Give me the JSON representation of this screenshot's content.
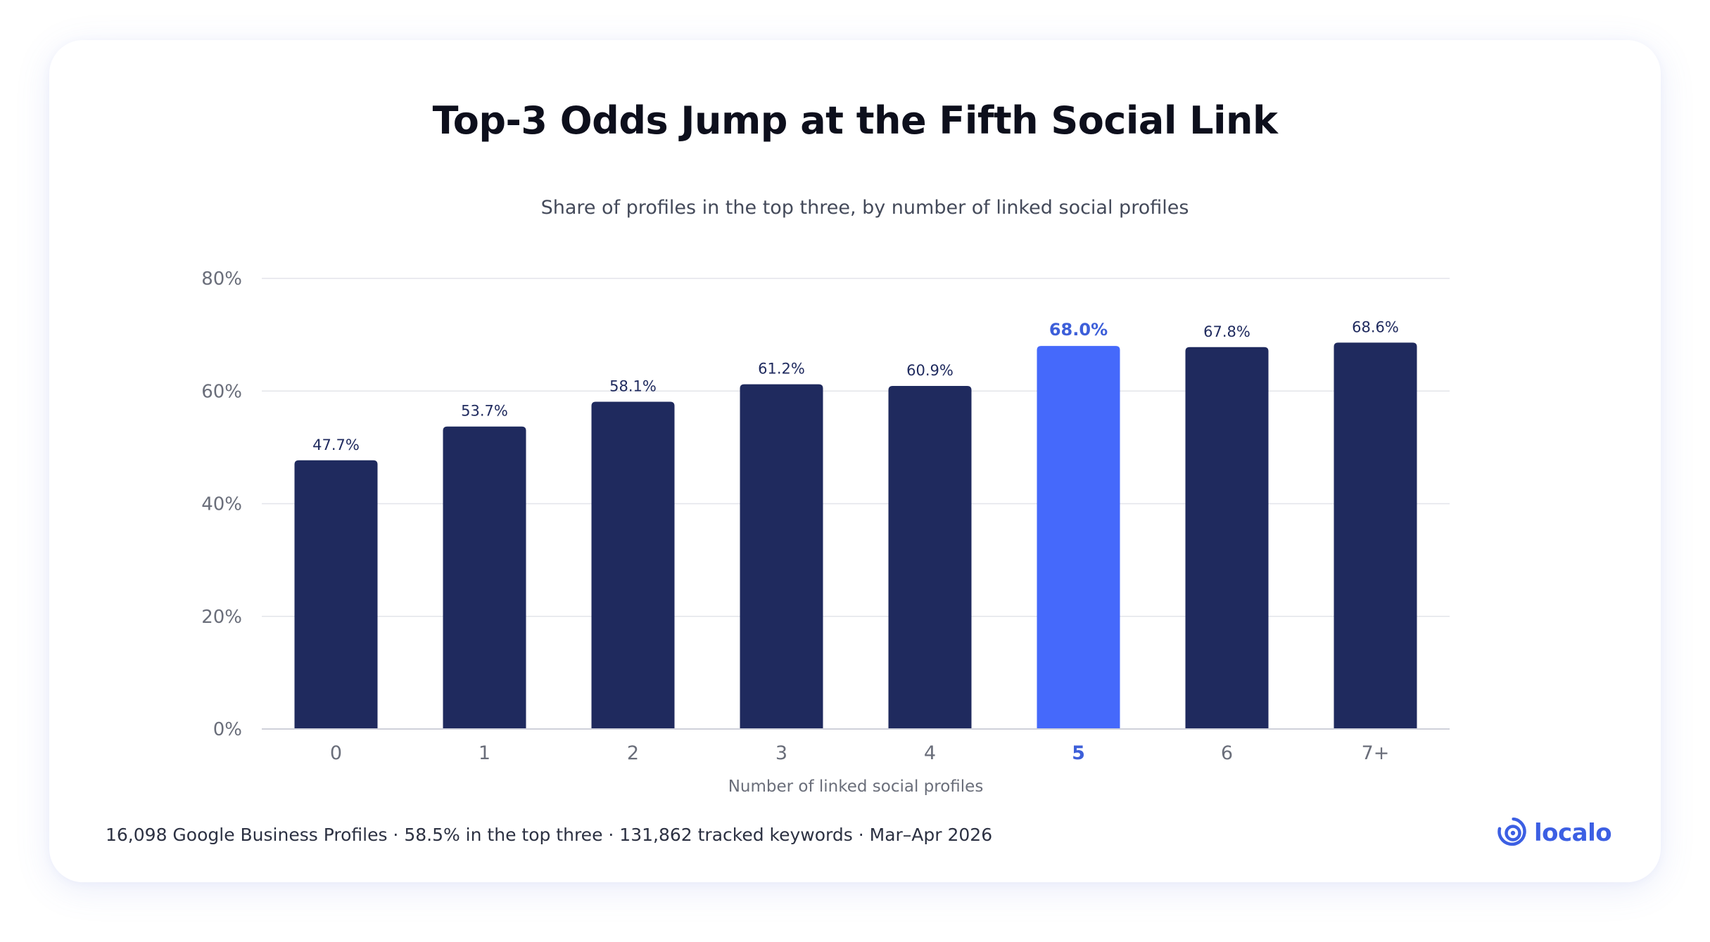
{
  "title": "Top-3 Odds Jump at the Fifth Social Link",
  "subtitle": "Share of profiles in the top three, by number of linked social profiles",
  "footer": "16,098 Google Business Profiles · 58.5% in the top three · 131,862 tracked keywords · Mar–Apr 2026",
  "brand": {
    "name": "localo",
    "icon": "location-pin-icon"
  },
  "colors": {
    "bar": "#1f2a5e",
    "highlight": "#4569fb",
    "highlight_text": "#3d5fd9",
    "grid": "#e3e4ea",
    "axis": "#cfd1da",
    "tick_text": "#6a6e7a",
    "value_text": "#1f2a5e"
  },
  "chart_data": {
    "type": "bar",
    "title": "Top-3 Odds Jump at the Fifth Social Link",
    "subtitle": "Share of profiles in the top three, by number of linked social profiles",
    "xlabel": "Number of linked social profiles",
    "ylabel": "",
    "categories": [
      "0",
      "1",
      "2",
      "3",
      "4",
      "5",
      "6",
      "7+"
    ],
    "values": [
      47.7,
      53.7,
      58.1,
      61.2,
      60.9,
      68.0,
      67.8,
      68.6
    ],
    "value_labels": [
      "47.7%",
      "53.7%",
      "58.1%",
      "61.2%",
      "60.9%",
      "68.0%",
      "67.8%",
      "68.6%"
    ],
    "highlight_category": "5",
    "ylim": [
      0,
      80
    ],
    "yticks": [
      0,
      20,
      40,
      60,
      80
    ],
    "ytick_labels": [
      "0%",
      "20%",
      "40%",
      "60%",
      "80%"
    ],
    "grid": true,
    "legend": "none"
  }
}
